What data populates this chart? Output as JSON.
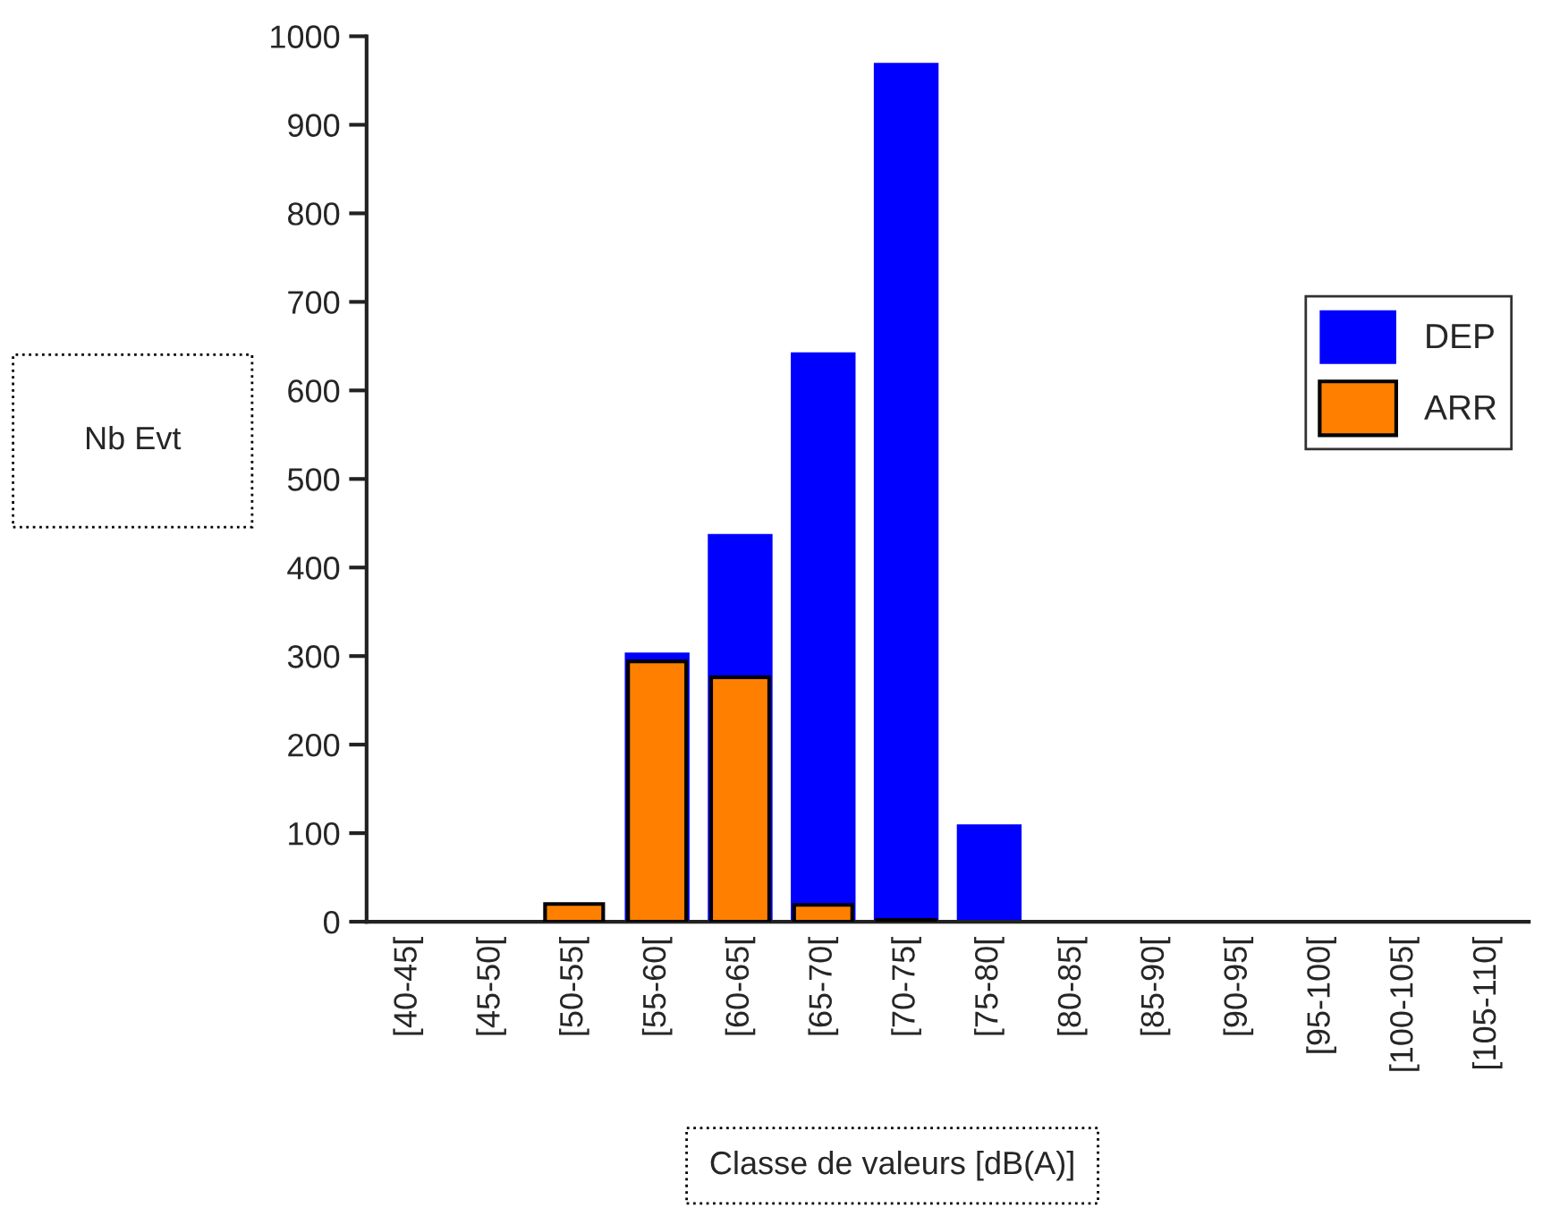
{
  "chart_data": {
    "type": "bar",
    "xlabel": "Classe de valeurs [dB(A)]",
    "ylabel": "Nb Evt",
    "categories": [
      "[40-45[",
      "[45-50[",
      "[50-55[",
      "[55-60[",
      "[60-65[",
      "[65-70[",
      "[70-75[",
      "[75-80[",
      "[80-85[",
      "[85-90[",
      "[90-95[",
      "[95-100[",
      "[100-105[",
      "[105-110["
    ],
    "series": [
      {
        "name": "DEP",
        "color": "#0000ff",
        "values": [
          null,
          null,
          null,
          304,
          438,
          643,
          970,
          110,
          null,
          null,
          null,
          null,
          null,
          null
        ]
      },
      {
        "name": "ARR",
        "color": "#ff8000",
        "values": [
          null,
          null,
          20,
          294,
          276,
          19,
          2,
          null,
          null,
          null,
          null,
          null,
          null,
          null
        ]
      }
    ],
    "ylim": [
      0,
      1000
    ],
    "yticks": [
      0,
      100,
      200,
      300,
      400,
      500,
      600,
      700,
      800,
      900,
      1000
    ],
    "legend": "right",
    "grid": false
  }
}
